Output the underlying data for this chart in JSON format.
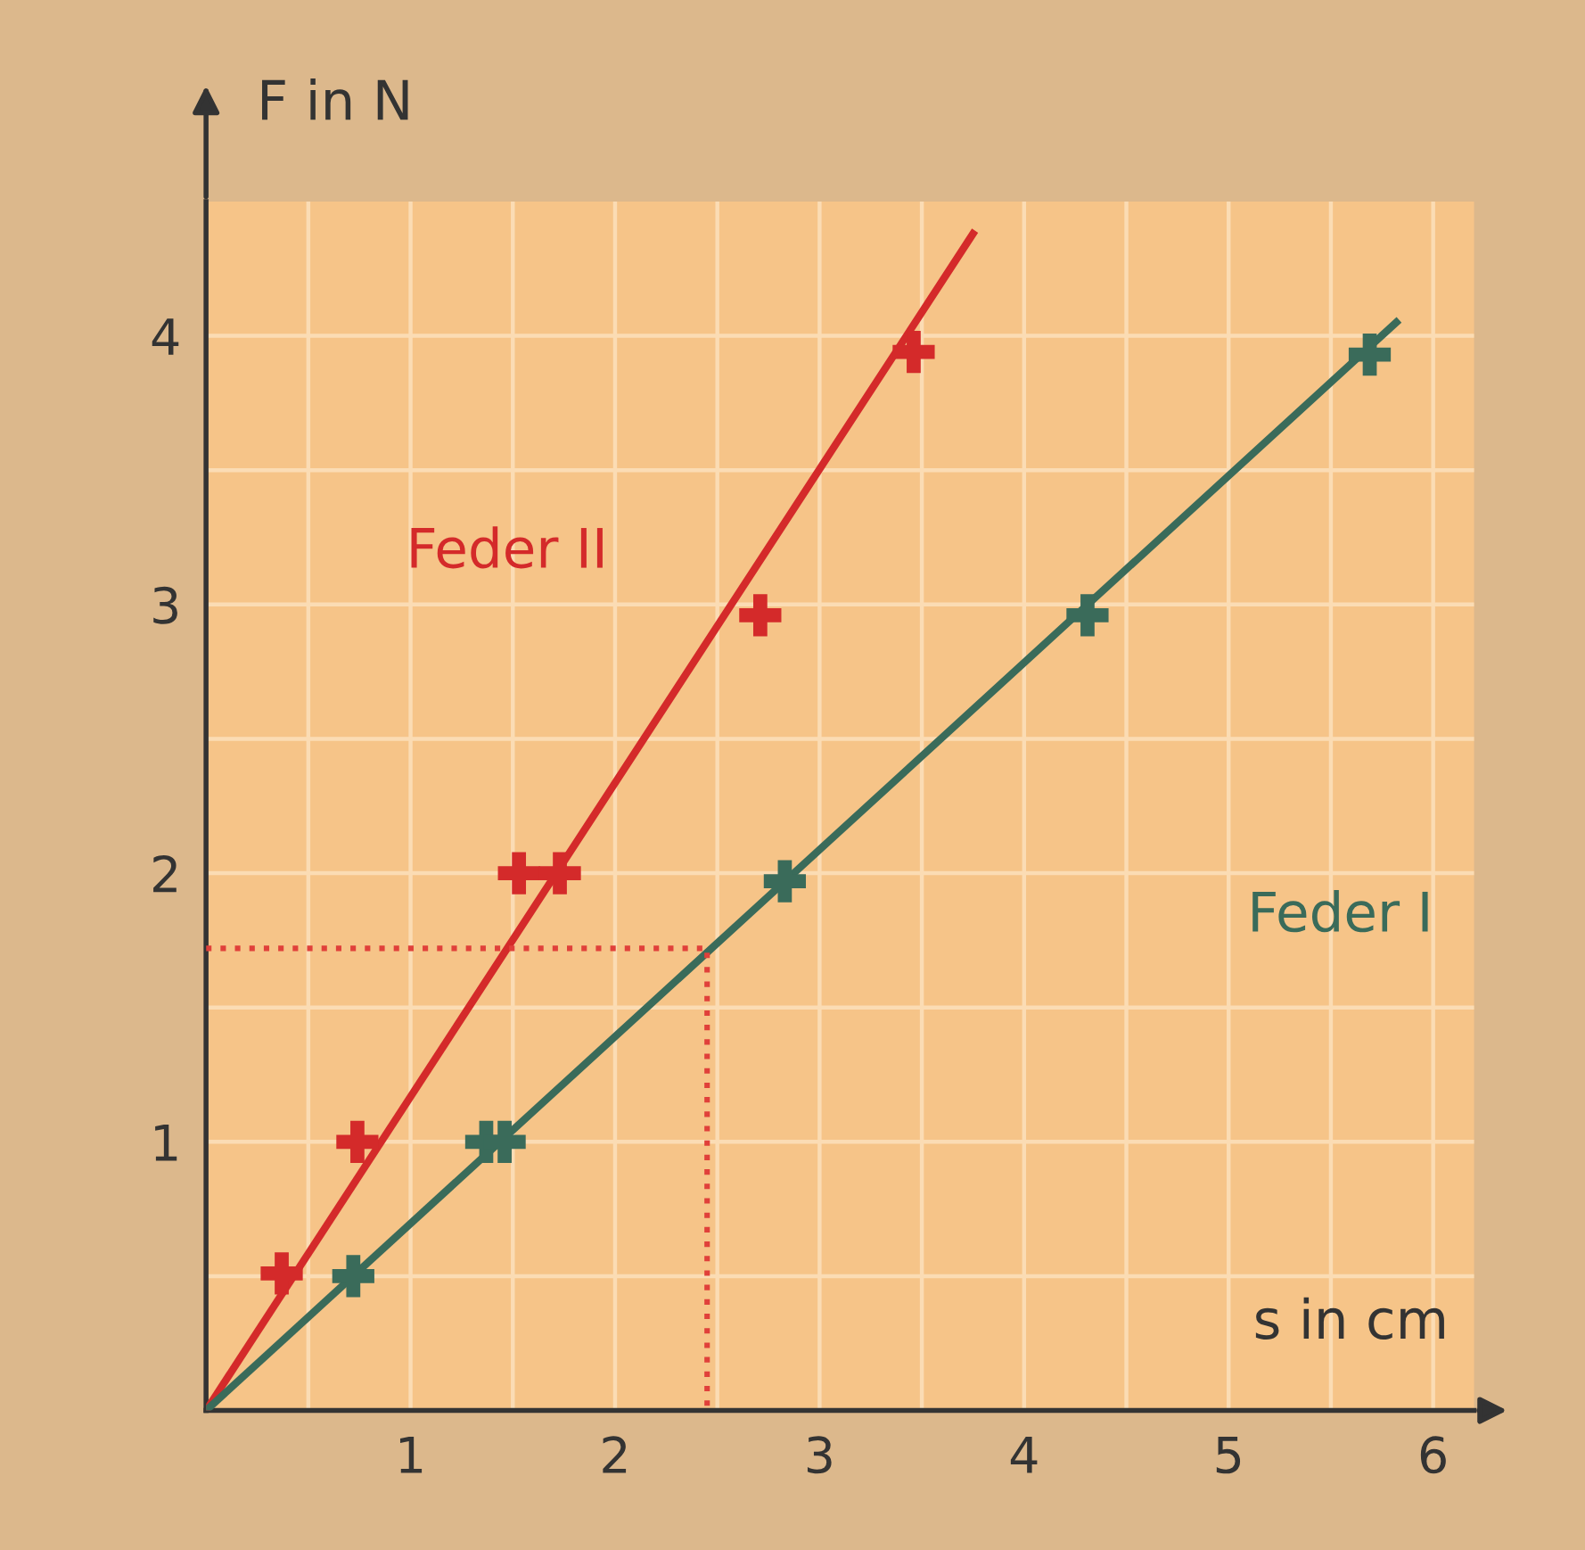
{
  "chart_data": {
    "type": "scatter",
    "xlabel": "s in cm",
    "ylabel": "F in N",
    "xlim": [
      0,
      6.2
    ],
    "ylim": [
      0,
      4.5
    ],
    "xticks": [
      {
        "value": 0.5,
        "label": null
      },
      1,
      {
        "value": 1.5,
        "label": null
      },
      2,
      {
        "value": 2.5,
        "label": null
      },
      3,
      {
        "value": 3.5,
        "label": null
      },
      4,
      {
        "value": 4.5,
        "label": null
      },
      5,
      {
        "value": 5.5,
        "label": null
      },
      6
    ],
    "yticks": [
      {
        "value": 0.5,
        "label": null
      },
      1,
      {
        "value": 1.5,
        "label": null
      },
      2,
      {
        "value": 2.5,
        "label": null
      },
      3,
      {
        "value": 3.5,
        "label": null
      },
      4
    ],
    "grid": true,
    "series": [
      {
        "marker": "cross",
        "color": "#d42a2a",
        "x": [
          0.37,
          0.74,
          1.53,
          1.73,
          2.71,
          3.46
        ],
        "values": [
          0.51,
          1.0,
          2.0,
          2.0,
          2.96,
          3.94
        ]
      },
      {
        "type": "line",
        "name": "Feder II",
        "color": "#d42a2a",
        "x": [
          0,
          3.75
        ],
        "values": [
          0,
          4.38
        ]
      },
      {
        "marker": "cross",
        "color": "#3a6b5a",
        "x": [
          0.72,
          1.37,
          1.46,
          2.83,
          4.31,
          5.69
        ],
        "values": [
          0.5,
          1.0,
          1.0,
          1.97,
          2.96,
          3.93
        ]
      },
      {
        "type": "line",
        "name": "Feder I",
        "color": "#3a6b5a",
        "x": [
          0,
          5.82
        ],
        "values": [
          0,
          4.05
        ]
      },
      {
        "type": "line",
        "color": "#e0403a",
        "line_style": "dotted",
        "x": [
          0,
          2.45,
          2.45
        ],
        "values": [
          1.72,
          1.72,
          0
        ]
      }
    ]
  }
}
